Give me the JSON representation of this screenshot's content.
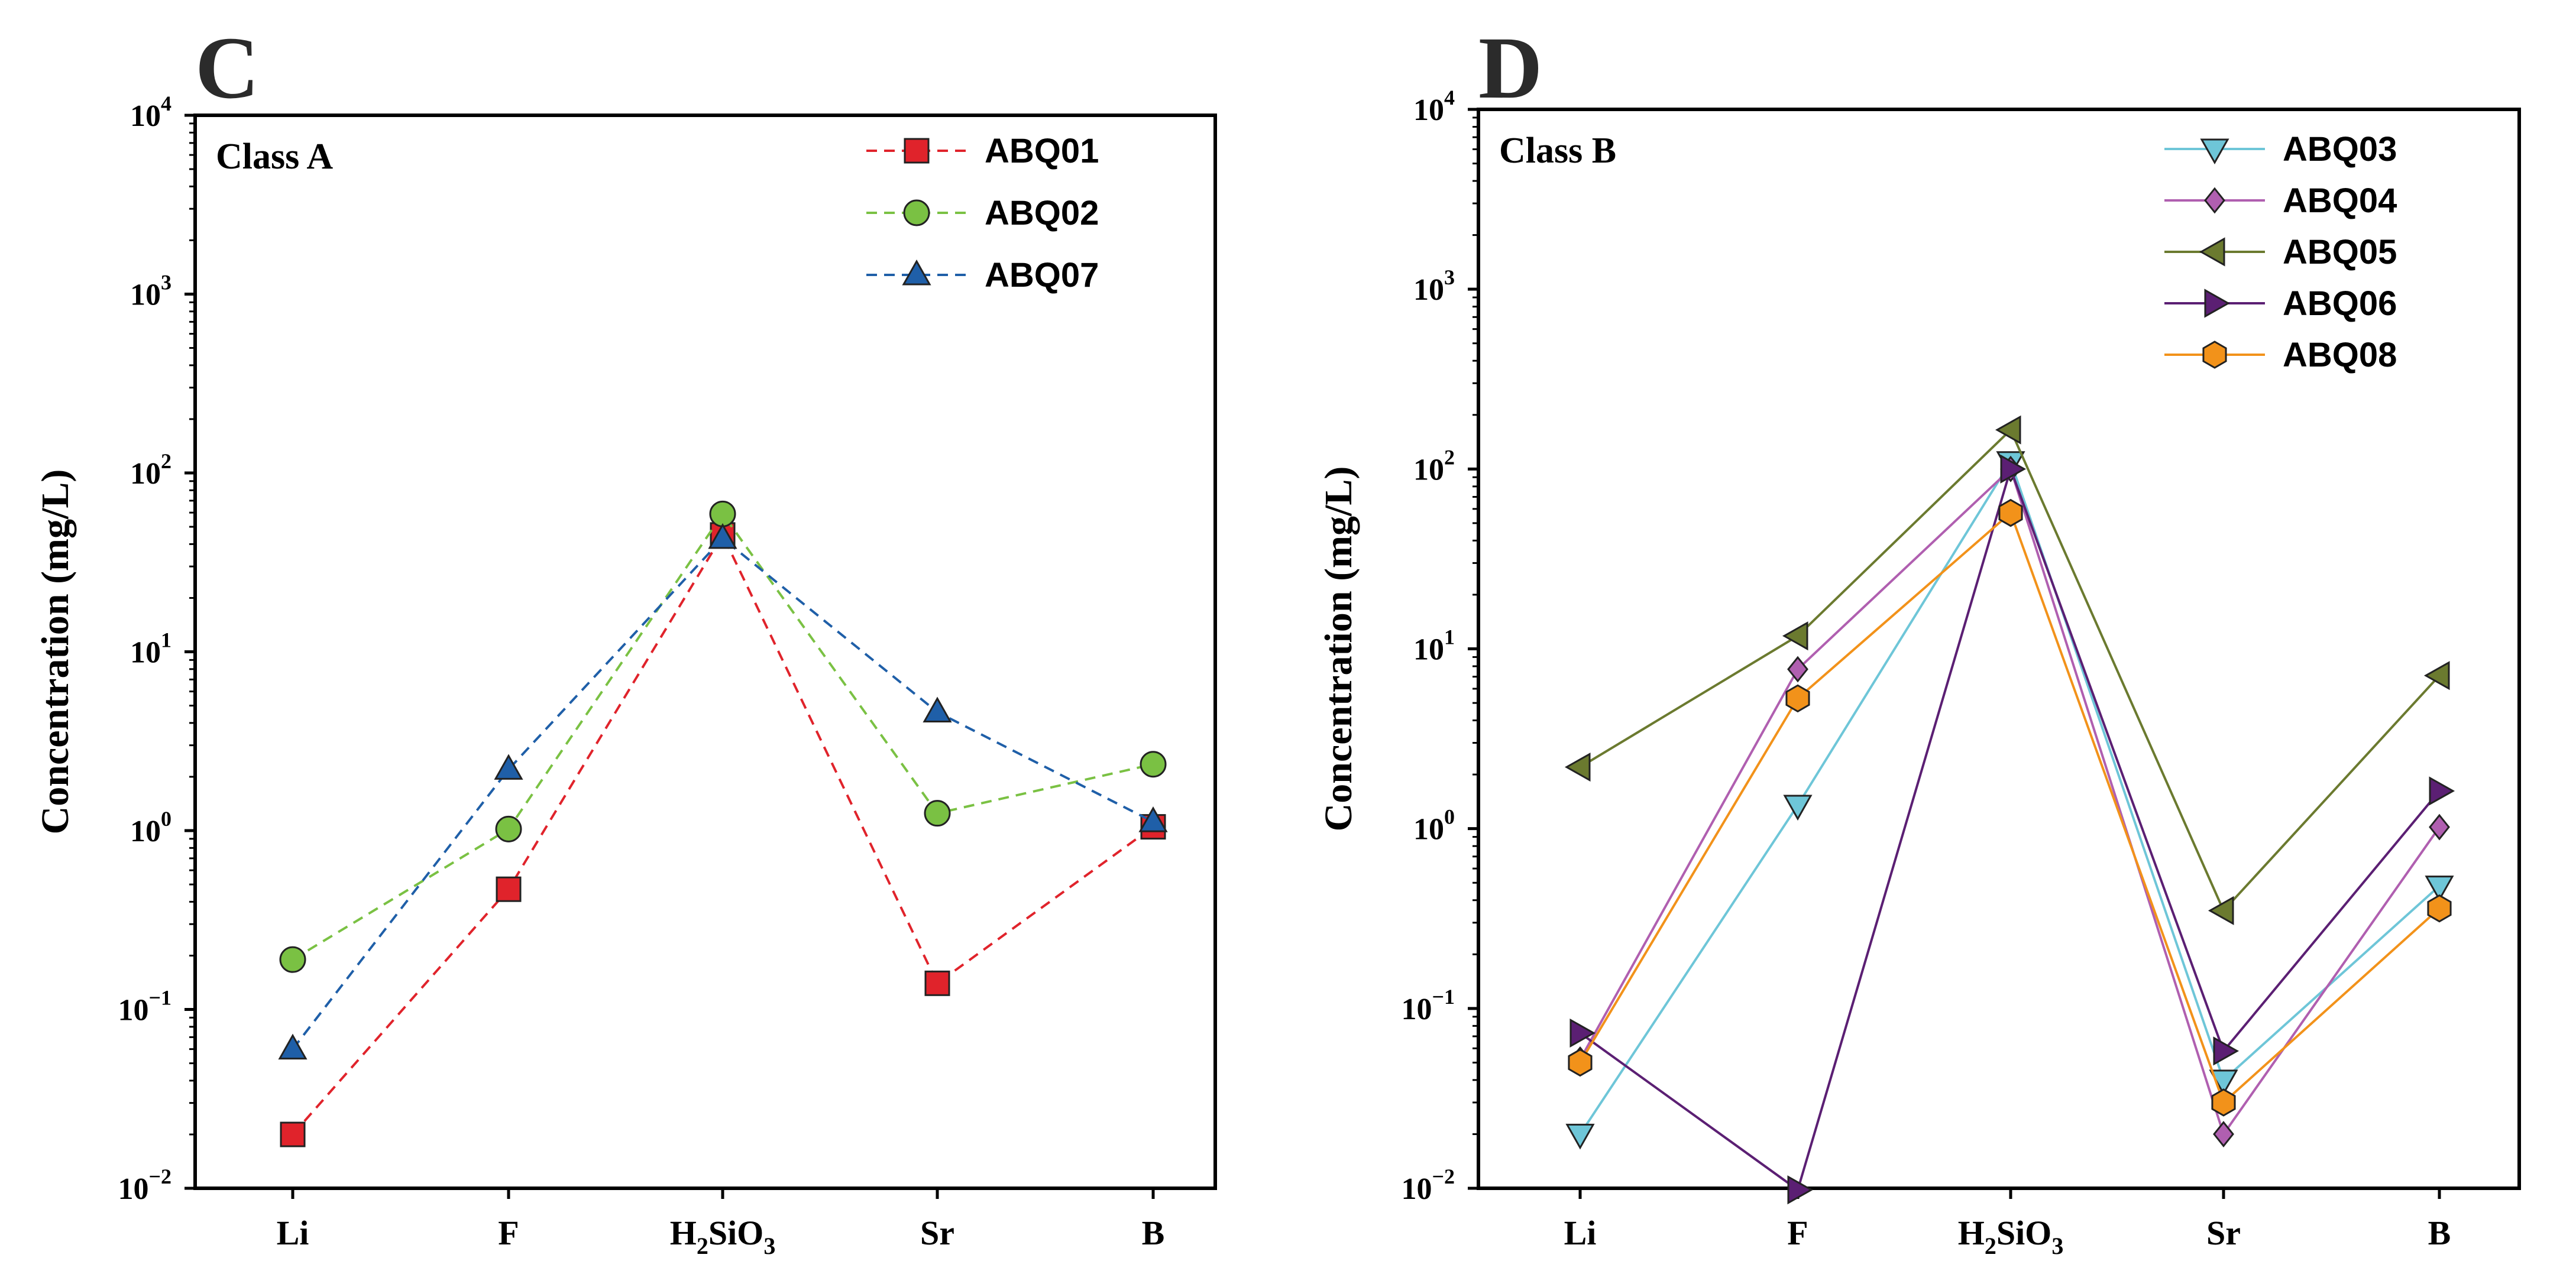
{
  "chart_data": [
    {
      "type": "line",
      "panel_letter": "C",
      "class_label": "Class A",
      "ylabel": "Concentration (mg/L)",
      "xlabel": "",
      "yscale": "log",
      "ylim": [
        0.01,
        10000
      ],
      "yticks": [
        {
          "value": 0.01,
          "base": "10",
          "exp": "−2"
        },
        {
          "value": 0.1,
          "base": "10",
          "exp": "−1"
        },
        {
          "value": 1,
          "base": "10",
          "exp": "0"
        },
        {
          "value": 10,
          "base": "10",
          "exp": "1"
        },
        {
          "value": 100,
          "base": "10",
          "exp": "2"
        },
        {
          "value": 1000,
          "base": "10",
          "exp": "3"
        },
        {
          "value": 10000,
          "base": "10",
          "exp": "4"
        }
      ],
      "categories": [
        {
          "main": "Li",
          "sub": "",
          "tail": ""
        },
        {
          "main": "F",
          "sub": "",
          "tail": ""
        },
        {
          "main": "H",
          "sub": "2",
          "tail": "SiO",
          "sub2": "3"
        },
        {
          "main": "Sr",
          "sub": "",
          "tail": ""
        },
        {
          "main": "B",
          "sub": "",
          "tail": ""
        }
      ],
      "legend_position": "top-right",
      "series": [
        {
          "name": "ABQ01",
          "color": "#e0232b",
          "line_style": "dashed",
          "marker": "square",
          "values": [
            0.02,
            0.47,
            45,
            0.14,
            1.05
          ]
        },
        {
          "name": "ABQ02",
          "color": "#7ac143",
          "line_style": "dashed",
          "marker": "circle",
          "values": [
            0.19,
            1.02,
            59,
            1.25,
            2.35
          ]
        },
        {
          "name": "ABQ07",
          "color": "#1f5fa8",
          "line_style": "dashed",
          "marker": "triangle-up",
          "values": [
            0.06,
            2.2,
            43,
            4.6,
            1.12
          ]
        }
      ]
    },
    {
      "type": "line",
      "panel_letter": "D",
      "class_label": "Class B",
      "ylabel": "Concentration (mg/L)",
      "xlabel": "",
      "yscale": "log",
      "ylim": [
        0.01,
        10000
      ],
      "yticks": [
        {
          "value": 0.01,
          "base": "10",
          "exp": "−2"
        },
        {
          "value": 0.1,
          "base": "10",
          "exp": "−1"
        },
        {
          "value": 1,
          "base": "10",
          "exp": "0"
        },
        {
          "value": 10,
          "base": "10",
          "exp": "1"
        },
        {
          "value": 100,
          "base": "10",
          "exp": "2"
        },
        {
          "value": 1000,
          "base": "10",
          "exp": "3"
        },
        {
          "value": 10000,
          "base": "10",
          "exp": "4"
        }
      ],
      "categories": [
        {
          "main": "Li",
          "sub": "",
          "tail": ""
        },
        {
          "main": "F",
          "sub": "",
          "tail": ""
        },
        {
          "main": "H",
          "sub": "2",
          "tail": "SiO",
          "sub2": "3"
        },
        {
          "main": "Sr",
          "sub": "",
          "tail": ""
        },
        {
          "main": "B",
          "sub": "",
          "tail": ""
        }
      ],
      "legend_position": "top-right",
      "series": [
        {
          "name": "ABQ03",
          "color": "#6ec6d8",
          "line_style": "solid",
          "marker": "triangle-down",
          "values": [
            0.02,
            1.35,
            110,
            0.04,
            0.48
          ]
        },
        {
          "name": "ABQ04",
          "color": "#b05fb0",
          "line_style": "solid",
          "marker": "diamond",
          "values": [
            0.052,
            7.7,
            100,
            0.02,
            1.02
          ]
        },
        {
          "name": "ABQ05",
          "color": "#6b7a2f",
          "line_style": "solid",
          "marker": "triangle-left",
          "values": [
            2.2,
            11.8,
            165,
            0.35,
            7.1
          ]
        },
        {
          "name": "ABQ06",
          "color": "#5b1f73",
          "line_style": "solid",
          "marker": "triangle-right",
          "values": [
            0.073,
            0.0098,
            100,
            0.058,
            1.62
          ]
        },
        {
          "name": "ABQ08",
          "color": "#f2921a",
          "line_style": "solid",
          "marker": "hexagon",
          "values": [
            0.05,
            5.3,
            57,
            0.03,
            0.36
          ]
        }
      ]
    }
  ]
}
